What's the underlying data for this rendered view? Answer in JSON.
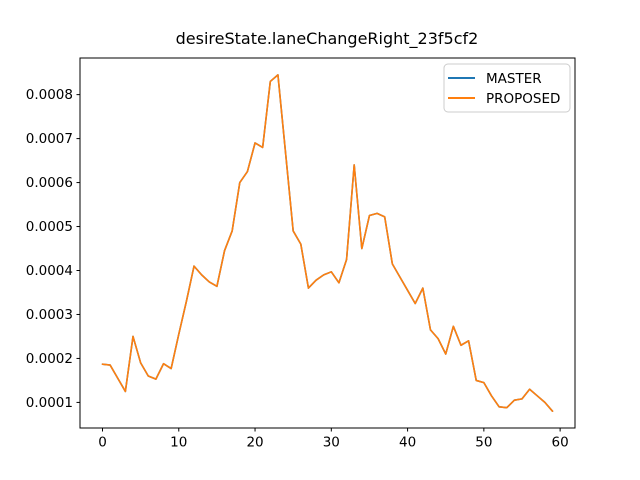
{
  "chart_data": {
    "type": "line",
    "title": "desireState.laneChangeRight_23f5cf2",
    "xlabel": "",
    "ylabel": "",
    "grid": false,
    "legend_position": "upper right",
    "xlim": [
      -2.95,
      61.95
    ],
    "ylim": [
      4.18e-05,
      0.0008833
    ],
    "xticks": [
      0,
      10,
      20,
      30,
      40,
      50,
      60
    ],
    "yticks": [
      0.0001,
      0.0002,
      0.0003,
      0.0004,
      0.0005,
      0.0006,
      0.0007,
      0.0008
    ],
    "x": [
      0,
      1,
      2,
      3,
      4,
      5,
      6,
      7,
      8,
      9,
      10,
      11,
      12,
      13,
      14,
      15,
      16,
      17,
      18,
      19,
      20,
      21,
      22,
      23,
      24,
      25,
      26,
      27,
      28,
      29,
      30,
      31,
      32,
      33,
      34,
      35,
      36,
      37,
      38,
      39,
      40,
      41,
      42,
      43,
      44,
      45,
      46,
      47,
      48,
      49,
      50,
      51,
      52,
      53,
      54,
      55,
      56,
      57,
      58,
      59
    ],
    "series": [
      {
        "name": "MASTER",
        "color": "#1f77b4",
        "values": [
          0.000187,
          0.000185,
          0.000155,
          0.000125,
          0.00025,
          0.00019,
          0.00016,
          0.000153,
          0.000188,
          0.000177,
          0.000255,
          0.00033,
          0.00041,
          0.00039,
          0.000374,
          0.000364,
          0.000445,
          0.00049,
          0.0006,
          0.000625,
          0.00069,
          0.00068,
          0.00083,
          0.000845,
          0.000668,
          0.00049,
          0.00046,
          0.00036,
          0.000378,
          0.00039,
          0.000397,
          0.000372,
          0.000425,
          0.00064,
          0.00045,
          0.000525,
          0.00053,
          0.000522,
          0.000415,
          0.000385,
          0.000355,
          0.000325,
          0.00036,
          0.000265,
          0.000245,
          0.00021,
          0.000273,
          0.00023,
          0.00024,
          0.00015,
          0.000145,
          0.000115,
          9e-05,
          8.8e-05,
          0.000105,
          0.000108,
          0.00013,
          0.000115,
          0.0001,
          8e-05
        ]
      },
      {
        "name": "PROPOSED",
        "color": "#ff7f0e",
        "values": [
          0.000187,
          0.000185,
          0.000155,
          0.000125,
          0.00025,
          0.00019,
          0.00016,
          0.000153,
          0.000188,
          0.000177,
          0.000255,
          0.00033,
          0.00041,
          0.00039,
          0.000374,
          0.000364,
          0.000445,
          0.00049,
          0.0006,
          0.000625,
          0.00069,
          0.00068,
          0.00083,
          0.000845,
          0.000668,
          0.00049,
          0.00046,
          0.00036,
          0.000378,
          0.00039,
          0.000397,
          0.000372,
          0.000425,
          0.00064,
          0.00045,
          0.000525,
          0.00053,
          0.000522,
          0.000415,
          0.000385,
          0.000355,
          0.000325,
          0.00036,
          0.000265,
          0.000245,
          0.00021,
          0.000273,
          0.00023,
          0.00024,
          0.00015,
          0.000145,
          0.000115,
          9e-05,
          8.8e-05,
          0.000105,
          0.000108,
          0.00013,
          0.000115,
          0.0001,
          8e-05
        ]
      }
    ]
  }
}
